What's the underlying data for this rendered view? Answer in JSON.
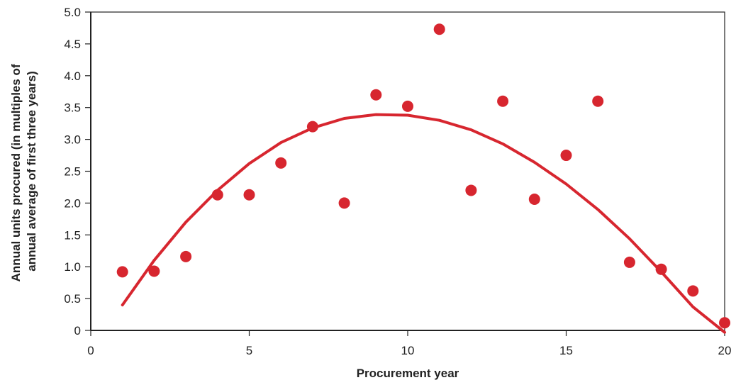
{
  "chart_data": {
    "type": "scatter",
    "xlabel": "Procurement year",
    "ylabel_lines": [
      "Annual units procured (in multiples of",
      "annual average of first three years)"
    ],
    "xlim": [
      0,
      20
    ],
    "ylim": [
      0,
      5.0
    ],
    "x_ticks": [
      0,
      5,
      10,
      15,
      20
    ],
    "x_tick_labels": [
      "0",
      "5",
      "10",
      "15",
      "20"
    ],
    "y_ticks": [
      0,
      0.5,
      1.0,
      1.5,
      2.0,
      2.5,
      3.0,
      3.5,
      4.0,
      4.5,
      5.0
    ],
    "y_tick_labels": [
      "0",
      "0.5",
      "1.0",
      "1.5",
      "2.0",
      "2.5",
      "3.0",
      "3.5",
      "4.0",
      "4.5",
      "5.0"
    ],
    "grid": false,
    "series": [
      {
        "type": "scatter",
        "x": [
          1,
          2,
          3,
          4,
          5,
          6,
          7,
          8,
          9,
          10,
          11,
          12,
          13,
          14,
          15,
          16,
          17,
          18,
          19,
          20
        ],
        "y": [
          0.92,
          0.93,
          1.16,
          2.13,
          2.13,
          2.63,
          3.2,
          2.0,
          3.7,
          3.52,
          4.73,
          2.2,
          3.6,
          2.06,
          2.75,
          3.6,
          1.07,
          0.96,
          0.62,
          0.12
        ]
      },
      {
        "type": "line",
        "fit": "quadratic",
        "x": [
          1,
          2,
          3,
          4,
          5,
          6,
          7,
          8,
          9,
          10,
          11,
          12,
          13,
          14,
          15,
          16,
          17,
          18,
          19,
          20
        ],
        "y": [
          0.4,
          1.1,
          1.7,
          2.2,
          2.62,
          2.95,
          3.18,
          3.33,
          3.39,
          3.38,
          3.3,
          3.15,
          2.93,
          2.64,
          2.3,
          1.9,
          1.44,
          0.92,
          0.37,
          -0.03
        ]
      }
    ],
    "colors": {
      "marker": "#d7262f",
      "curve": "#d7262f",
      "axis": "#222222"
    }
  }
}
